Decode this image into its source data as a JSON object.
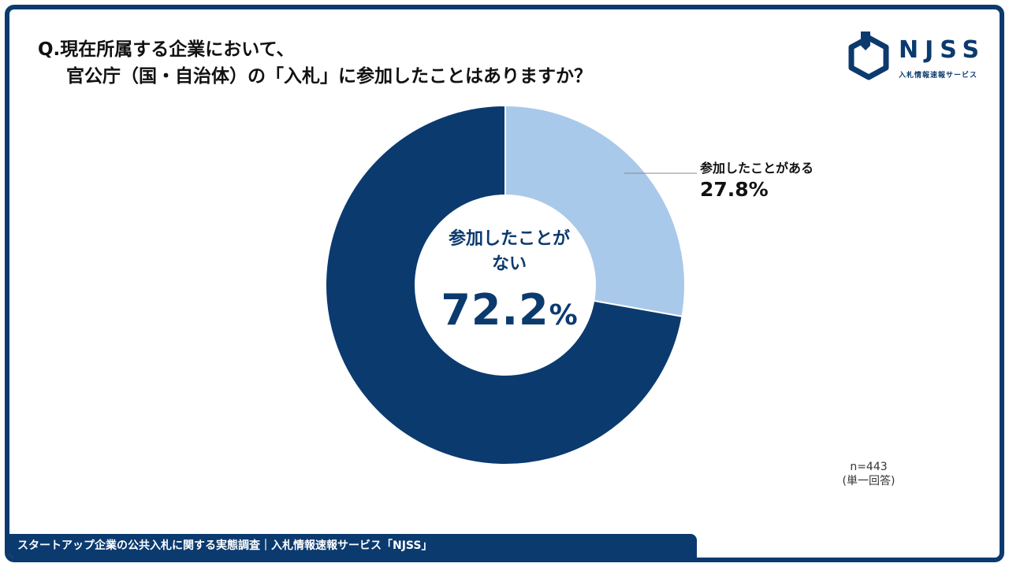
{
  "title": {
    "line1": "Q.現在所属する企業において、",
    "line2": "官公庁（国・自治体）の「入札」に参加したことはありますか？"
  },
  "logo": {
    "name": "NJSS",
    "subtitle": "入札情報速報サービス"
  },
  "chart_data": {
    "type": "pie",
    "donut": true,
    "slices": [
      {
        "label": "参加したことがある",
        "value": 27.8,
        "color": "#a9c9ea"
      },
      {
        "label": "参加したことがない",
        "value": 72.2,
        "color": "#0b3a6f"
      }
    ],
    "unit": "%"
  },
  "labels": {
    "participated_name": "参加したことがある",
    "participated_pct": "27.8%",
    "not_participated_name_line1": "参加したことが",
    "not_participated_name_line2": "ない",
    "not_participated_num": "72.2",
    "not_participated_unit": "%"
  },
  "note": {
    "n": "n=443",
    "type": "(単一回答)"
  },
  "footer": "スタートアップ企業の公共入札に関する実態調査｜入札情報速報サービス「NJSS」",
  "colors": {
    "brand": "#0b3a6f",
    "light": "#a9c9ea"
  }
}
